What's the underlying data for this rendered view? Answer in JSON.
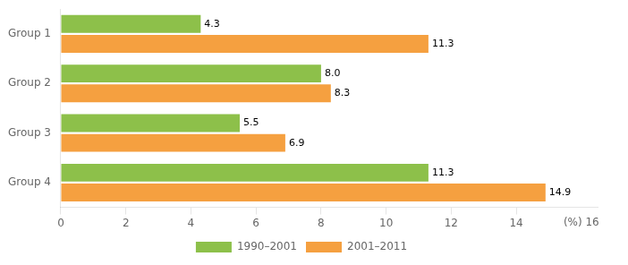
{
  "chart_data": {
    "type": "bar",
    "orientation": "horizontal",
    "categories": [
      "Group 1",
      "Group 2",
      "Group 3",
      "Group 4"
    ],
    "series": [
      {
        "name": "1990–2001",
        "color": "#8DC04A",
        "values": [
          4.3,
          8.0,
          5.5,
          11.3
        ],
        "value_labels": [
          "4.3",
          "8.0",
          "5.5",
          "11.3"
        ]
      },
      {
        "name": "2001–2011",
        "color": "#F5A040",
        "values": [
          11.3,
          8.3,
          6.9,
          14.9
        ],
        "value_labels": [
          "11.3",
          "8.3",
          "6.9",
          "14.9"
        ]
      }
    ],
    "xlim": [
      0,
      16.5
    ],
    "xticks": [
      0,
      2,
      4,
      6,
      8,
      10,
      12,
      14
    ],
    "annotations": [
      {
        "text": "(%) 16",
        "x": 16
      }
    ],
    "data_labels": true,
    "grid": false,
    "legend": "bottom"
  }
}
